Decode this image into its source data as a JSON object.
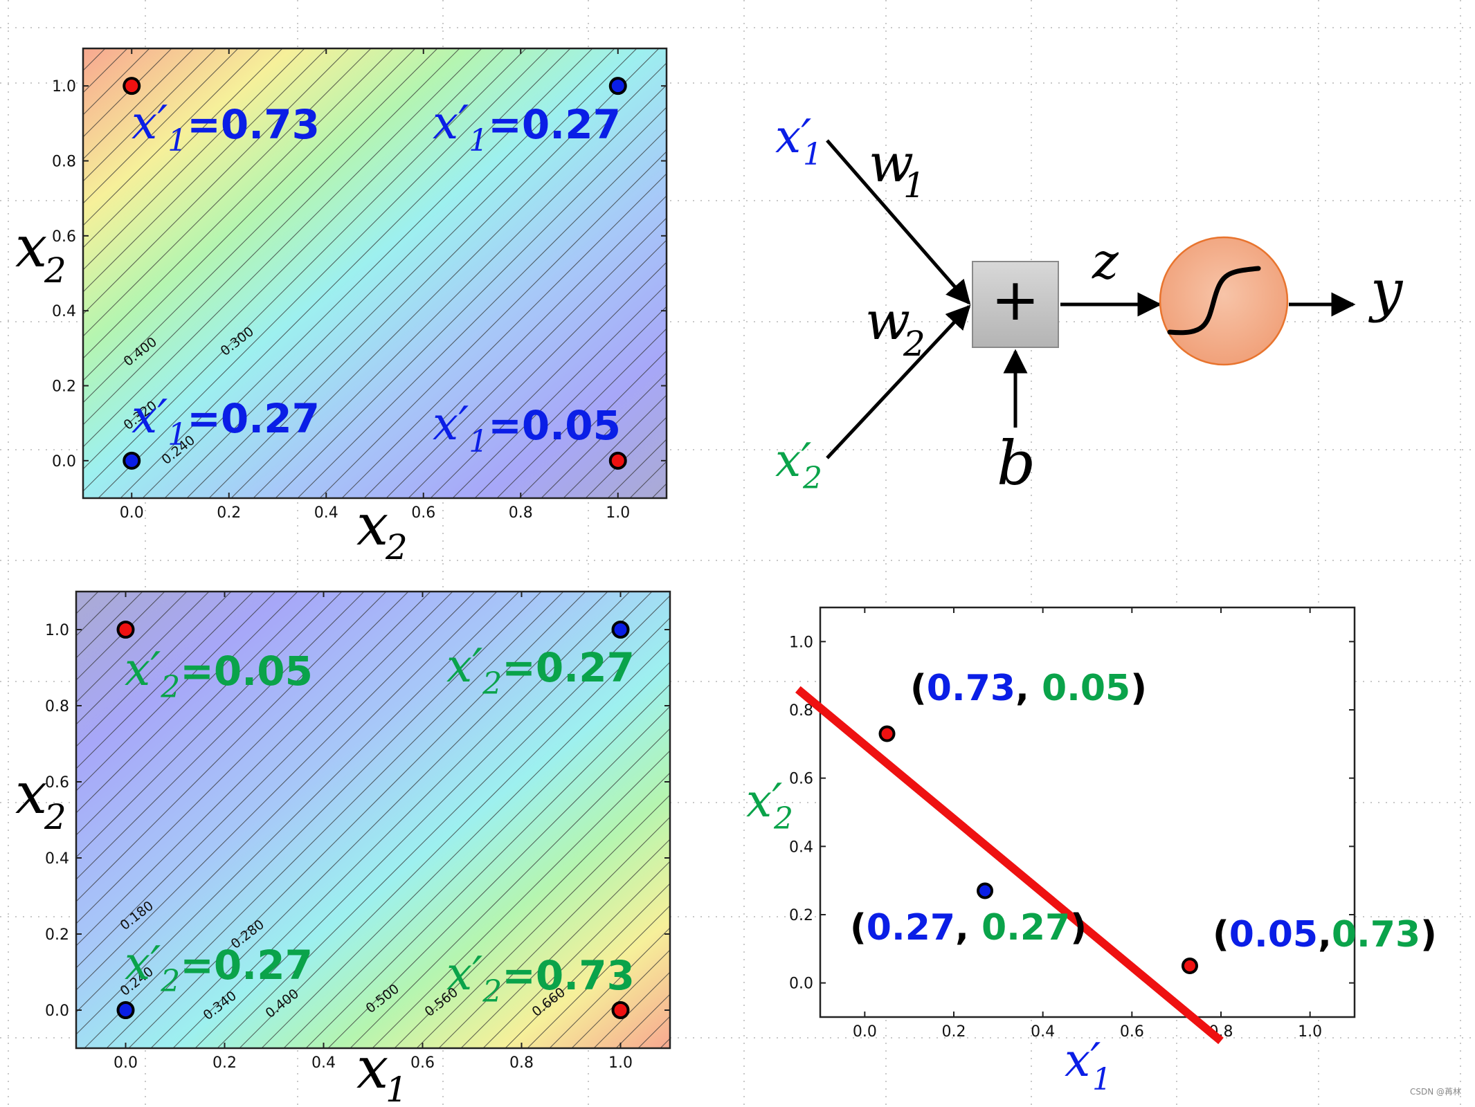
{
  "colors": {
    "blue": "#0a1ee6",
    "green": "#0aa34a",
    "red": "#ee1111",
    "black": "#000000",
    "sum_box": "#c0c0c0",
    "activation_fill": "#f4b08d",
    "activation_stroke": "#e8742e"
  },
  "chart_data": [
    {
      "id": "top-left",
      "type": "heatmap",
      "xlabel": "x2",
      "ylabel": "x2",
      "xticks": [
        "0.0",
        "0.2",
        "0.4",
        "0.6",
        "0.8",
        "1.0"
      ],
      "yticks": [
        "0.0",
        "0.2",
        "0.4",
        "0.6",
        "0.8",
        "1.0"
      ],
      "xlim": [
        -0.1,
        1.1
      ],
      "ylim": [
        -0.1,
        1.1
      ],
      "colormap_direction": "high at top-left, low at bottom-right",
      "contour_labels": [
        "0.400",
        "0.300",
        "0.320",
        "0.240"
      ],
      "points": [
        {
          "x": 0,
          "y": 1,
          "color": "red"
        },
        {
          "x": 1,
          "y": 1,
          "color": "blue"
        },
        {
          "x": 0,
          "y": 0,
          "color": "blue"
        },
        {
          "x": 1,
          "y": 0,
          "color": "red"
        }
      ],
      "annotations": [
        {
          "text": "=0.73",
          "var": "x′",
          "sub": "1",
          "color": "blue"
        },
        {
          "text": "=0.27",
          "var": "x′",
          "sub": "1",
          "color": "blue"
        },
        {
          "text": "=0.27",
          "var": "x′",
          "sub": "1",
          "color": "blue"
        },
        {
          "text": "=0.05",
          "var": "x′",
          "sub": "1",
          "color": "blue"
        }
      ]
    },
    {
      "id": "bottom-left",
      "type": "heatmap",
      "xlabel": "x1",
      "ylabel": "x2",
      "xticks": [
        "0.0",
        "0.2",
        "0.4",
        "0.6",
        "0.8",
        "1.0"
      ],
      "yticks": [
        "0.0",
        "0.2",
        "0.4",
        "0.6",
        "0.8",
        "1.0"
      ],
      "xlim": [
        -0.1,
        1.1
      ],
      "ylim": [
        -0.1,
        1.1
      ],
      "colormap_direction": "low at top-left, high at bottom-right",
      "contour_labels": [
        "0.180",
        "0.280",
        "0.240",
        "0.340",
        "0.400",
        "0.500",
        "0.560",
        "0.660"
      ],
      "points": [
        {
          "x": 0,
          "y": 1,
          "color": "red"
        },
        {
          "x": 1,
          "y": 1,
          "color": "blue"
        },
        {
          "x": 0,
          "y": 0,
          "color": "blue"
        },
        {
          "x": 1,
          "y": 0,
          "color": "red"
        }
      ],
      "annotations": [
        {
          "text": "=0.05",
          "var": "x′",
          "sub": "2",
          "color": "green"
        },
        {
          "text": "=0.27",
          "var": "x′",
          "sub": "2",
          "color": "green"
        },
        {
          "text": "=0.27",
          "var": "x′",
          "sub": "2",
          "color": "green"
        },
        {
          "text": "=0.73",
          "var": "x′",
          "sub": "2",
          "color": "green"
        }
      ]
    },
    {
      "id": "bottom-right",
      "type": "scatter",
      "xlabel": "x′1",
      "ylabel": "x′2",
      "xticks": [
        "0.0",
        "0.2",
        "0.4",
        "0.6",
        "0.8",
        "1.0"
      ],
      "yticks": [
        "0.0",
        "0.2",
        "0.4",
        "0.6",
        "0.8",
        "1.0"
      ],
      "xlim": [
        -0.1,
        1.1
      ],
      "ylim": [
        -0.1,
        1.1
      ],
      "points": [
        {
          "x": 0.05,
          "y": 0.73,
          "color": "red",
          "label_a": "0.73",
          "label_b": "0.05"
        },
        {
          "x": 0.27,
          "y": 0.27,
          "color": "blue",
          "label_a": "0.27",
          "label_b": "0.27"
        },
        {
          "x": 0.73,
          "y": 0.05,
          "color": "red",
          "label_a": "0.05",
          "label_b": "0.73"
        }
      ],
      "decision_line": {
        "from": [
          -0.15,
          0.86
        ],
        "to": [
          0.8,
          -0.17
        ],
        "color": "red"
      }
    }
  ],
  "neuron": {
    "input1": {
      "var": "x′",
      "sub": "1"
    },
    "input2": {
      "var": "x′",
      "sub": "2"
    },
    "weight1": {
      "var": "w",
      "sub": "1"
    },
    "weight2": {
      "var": "w",
      "sub": "2"
    },
    "sum_symbol": "+",
    "bias": "b",
    "pre_activation": "z",
    "output": "y"
  },
  "watermark": "CSDN @苒林"
}
